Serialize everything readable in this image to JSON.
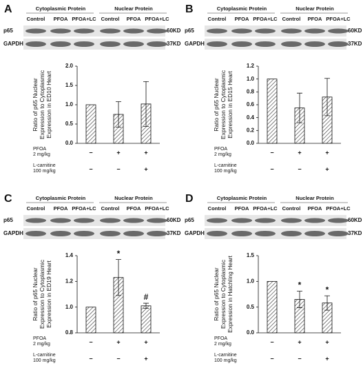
{
  "chart_data": [
    {
      "panel": "A",
      "type": "bar",
      "blot": {
        "groups": [
          "Cytoplasmic Protein",
          "Nuclear Protein"
        ],
        "lanes": [
          "Control",
          "PFOA",
          "PFOA+LC",
          "Control",
          "PFOA",
          "PFOA+LC"
        ],
        "rows": [
          {
            "name": "p65",
            "size": "60KD"
          },
          {
            "name": "GAPDH",
            "size": "37KD"
          }
        ]
      },
      "ylabel": [
        "Ratio of p65 Nuclear",
        "Expression to Cytoplasmic",
        "Expression in ED10 Heart"
      ],
      "categories": [
        null,
        null,
        null
      ],
      "values": [
        1.0,
        0.75,
        1.02
      ],
      "errors": [
        null,
        0.33,
        0.58
      ],
      "ylim": [
        0,
        2
      ],
      "yticks": [
        {
          "value": 0,
          "label": "0.0"
        },
        0.5,
        {
          "value": 1,
          "label": "1.0"
        },
        1.5,
        {
          "value": 2,
          "label": "2.0"
        }
      ],
      "color": "#333333",
      "x_table": [
        {
          "label": [
            "PFOA",
            "2 mg/kg"
          ],
          "marks": [
            "−",
            "+",
            "+"
          ]
        },
        {
          "label": [
            "L-carnitine",
            "100 mg/kg"
          ],
          "marks": [
            "−",
            "−",
            "+"
          ]
        }
      ]
    },
    {
      "panel": "B",
      "type": "bar",
      "blot": {
        "groups": [
          "Cytoplasmic Protein",
          "Nuclear Protein"
        ],
        "lanes": [
          "Control",
          "PFOA",
          "PFOA+LC",
          "Control",
          "PFOA",
          "PFOA+LC"
        ],
        "rows": [
          {
            "name": "p65",
            "size": "60KD"
          },
          {
            "name": "GAPDH",
            "size": "37KD"
          }
        ]
      },
      "ylabel": [
        "Ratio of p65 Nuclear",
        "Expression to Cytoplasmic",
        "Expression in ED15 Heart"
      ],
      "categories": [
        null,
        null,
        null
      ],
      "values": [
        1.0,
        0.55,
        0.72
      ],
      "errors": [
        null,
        0.23,
        0.29
      ],
      "ylim": [
        0,
        1.2
      ],
      "yticks": [
        {
          "value": 0,
          "label": "0.0"
        },
        0.2,
        0.4,
        0.6,
        0.8,
        {
          "value": 1,
          "label": "1.0"
        },
        1.2
      ],
      "color": "#333333",
      "x_table": [
        {
          "label": [
            "PFOA",
            "2 mg/kg"
          ],
          "marks": [
            "−",
            "+",
            "+"
          ]
        },
        {
          "label": [
            "L-carnitine",
            "100 mg/kg"
          ],
          "marks": [
            "−",
            "−",
            "+"
          ]
        }
      ]
    },
    {
      "panel": "C",
      "type": "bar",
      "blot": {
        "groups": [
          "Cytoplasmic Protein",
          "Nuclear Protein"
        ],
        "lanes": [
          "Control",
          "PFOA",
          "PFOA+LC",
          "Control",
          "PFOA",
          "PFOA+LC"
        ],
        "rows": [
          {
            "name": "p65",
            "size": "60KD"
          },
          {
            "name": "GAPDH",
            "size": "37KD"
          }
        ]
      },
      "ylabel": [
        "Ratio of p65 Nuclear",
        "Expression to Cytoplasmic",
        "Expression in ED19 Heart"
      ],
      "categories": [
        null,
        null,
        null
      ],
      "values": [
        1.0,
        1.23,
        1.01
      ],
      "errors": [
        null,
        0.14,
        0.02
      ],
      "value_annotations": [
        null,
        "*",
        "#"
      ],
      "ylim": [
        0.8,
        1.4
      ],
      "yticks": [
        0.8,
        {
          "value": 1,
          "label": "1.0"
        },
        1.2,
        1.4
      ],
      "color": "#333333",
      "x_table": [
        {
          "label": [
            "PFOA",
            "2 mg/kg"
          ],
          "marks": [
            "−",
            "+",
            "+"
          ]
        },
        {
          "label": [
            "L-carnitine",
            "100 mg/kg"
          ],
          "marks": [
            "−",
            "−",
            "+"
          ]
        }
      ]
    },
    {
      "panel": "D",
      "type": "bar",
      "blot": {
        "groups": [
          "Cytoplasmic Protein",
          "Nuclear Protein"
        ],
        "lanes": [
          "Control",
          "PFOA",
          "PFOA+LC",
          "Control",
          "PFOA",
          "PFOA+LC"
        ],
        "rows": [
          {
            "name": "p65",
            "size": "60KD"
          },
          {
            "name": "GAPDH",
            "size": "37KD"
          }
        ]
      },
      "ylabel": [
        "Ratio of p65 Nuclear",
        "Expression to Cytoplasmic",
        "Expression in Hatchling Heart"
      ],
      "categories": [
        null,
        null,
        null
      ],
      "values": [
        1.0,
        0.65,
        0.58
      ],
      "errors": [
        null,
        0.16,
        0.14
      ],
      "value_annotations": [
        null,
        "*",
        "*"
      ],
      "ylim": [
        0,
        1.5
      ],
      "yticks": [
        {
          "value": 0,
          "label": "0.0"
        },
        0.5,
        {
          "value": 1,
          "label": "1.0"
        },
        1.5
      ],
      "color": "#333333",
      "x_table": [
        {
          "label": [
            "PFOA",
            "2 mg/kg"
          ],
          "marks": [
            "−",
            "+",
            "+"
          ]
        },
        {
          "label": [
            "L-carnitine",
            "100 mg/kg"
          ],
          "marks": [
            "−",
            "−",
            "+"
          ]
        }
      ]
    }
  ]
}
